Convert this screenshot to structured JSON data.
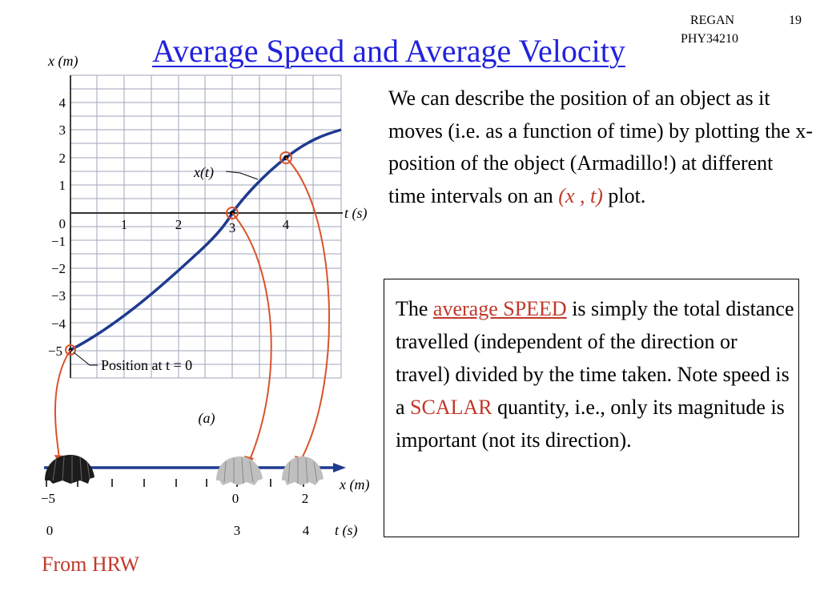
{
  "header": {
    "author": "REGAN",
    "course": "PHY34210",
    "page_number": "19",
    "title": "Average Speed and Average Velocity"
  },
  "intro": {
    "text_before": "We can describe the position of an object as it moves (i.e. as a function of time) by plotting the x-position of the object (Armadillo!) at different time intervals on an ",
    "highlight": "(x , t)",
    "text_after": " plot."
  },
  "speed_box": {
    "prefix": "The ",
    "term": "average SPEED",
    "part1": " is simply the total distance travelled (independent of the direction or travel) divided by the time taken. Note speed is a ",
    "scalar": "SCALAR",
    "part2": " quantity, i.e., only its magnitude is important (not its direction)."
  },
  "source": "From HRW",
  "figure": {
    "y_axis_label": "x (m)",
    "x_axis_label": "t (s)",
    "y_ticks": [
      "4",
      "3",
      "2",
      "1",
      "0",
      "−1",
      "−2",
      "−3",
      "−4",
      "−5"
    ],
    "x_ticks": [
      "1",
      "2",
      "3",
      "4"
    ],
    "curve_label": "x(t)",
    "start_label": "Position at t = 0",
    "panel_label": "(a)",
    "number_line_label": "x (m)",
    "number_line_ticks": [
      "−5",
      "0",
      "2"
    ],
    "time_row_label": "t (s)",
    "time_row_values": [
      "0",
      "3",
      "4"
    ],
    "points": [
      {
        "t": 0,
        "x": -5
      },
      {
        "t": 3,
        "x": 0
      },
      {
        "t": 4,
        "x": 2
      }
    ],
    "colors": {
      "curve": "#1f3a8f",
      "arrows": "#d9532c",
      "grid": "#9fa6b8",
      "markers": "#d9532c"
    }
  }
}
